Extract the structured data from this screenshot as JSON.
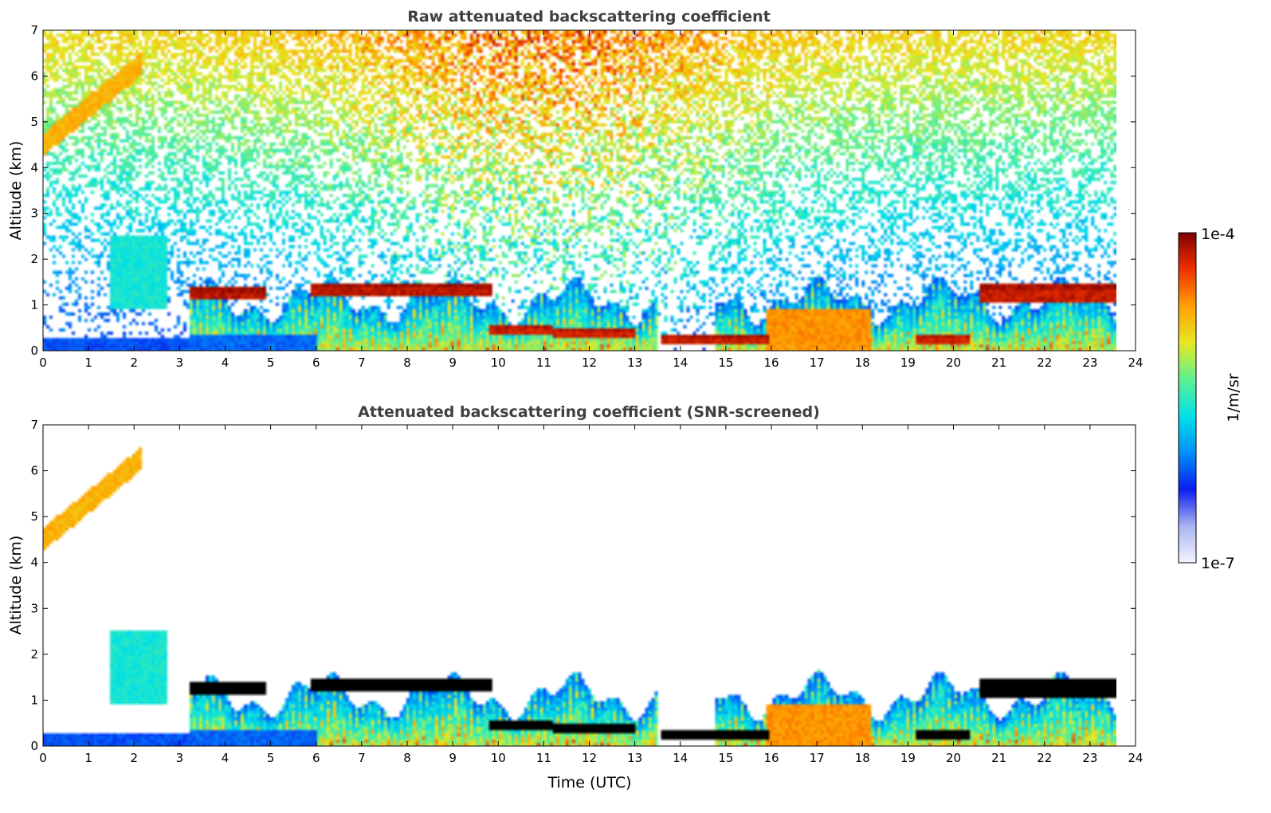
{
  "chart_data": [
    {
      "type": "heatmap",
      "title": "Raw attenuated backscattering coefficient",
      "xlabel": "",
      "ylabel": "Altitude (km)",
      "xlim": [
        0,
        24
      ],
      "ylim": [
        0,
        7
      ],
      "x_ticks": [
        "0",
        "1",
        "2",
        "3",
        "4",
        "5",
        "6",
        "7",
        "8",
        "9",
        "10",
        "11",
        "12",
        "13",
        "14",
        "15",
        "16",
        "17",
        "18",
        "19",
        "20",
        "21",
        "22",
        "23",
        "24"
      ],
      "y_ticks": [
        "0",
        "1",
        "2",
        "3",
        "4",
        "5",
        "6",
        "7"
      ],
      "data_end_x": 23.6,
      "screened": false,
      "features": [
        {
          "kind": "near-surface background",
          "x": [
            0,
            3.2
          ],
          "alt": [
            0,
            0.3
          ],
          "level": 0.3
        },
        {
          "kind": "near-surface background",
          "x": [
            3.2,
            6.0
          ],
          "alt": [
            0,
            0.35
          ],
          "level": 0.32
        },
        {
          "kind": "ascending cloud",
          "x": [
            0.0,
            2.2
          ],
          "alt_start": 4.5,
          "alt_end": 6.3,
          "level": 0.78
        },
        {
          "kind": "aerosol plume",
          "x": [
            1.5,
            2.7
          ],
          "alt": [
            0.9,
            2.5
          ],
          "level": 0.5
        },
        {
          "kind": "cloud layer",
          "x": [
            3.2,
            4.9
          ],
          "alt": [
            1.1,
            1.4
          ],
          "level": 0.97
        },
        {
          "kind": "cloud layer",
          "x": [
            5.9,
            9.9
          ],
          "alt": [
            1.2,
            1.5
          ],
          "level": 0.97
        },
        {
          "kind": "cloud layer",
          "x": [
            9.8,
            11.2
          ],
          "alt": [
            0.35,
            0.55
          ],
          "level": 0.95
        },
        {
          "kind": "cloud layer",
          "x": [
            11.2,
            13.0
          ],
          "alt": [
            0.3,
            0.5
          ],
          "level": 0.95
        },
        {
          "kind": "cloud layer",
          "x": [
            13.6,
            16.0
          ],
          "alt": [
            0.15,
            0.35
          ],
          "level": 0.96
        },
        {
          "kind": "boundary layer",
          "x": [
            15.9,
            18.2
          ],
          "alt": [
            0,
            0.9
          ],
          "level": 0.82
        },
        {
          "kind": "cloud layer",
          "x": [
            19.2,
            20.4
          ],
          "alt": [
            0.15,
            0.35
          ],
          "level": 0.95
        },
        {
          "kind": "cloud layer",
          "x": [
            20.6,
            23.6
          ],
          "alt": [
            1.05,
            1.5
          ],
          "level": 0.96
        }
      ]
    },
    {
      "type": "heatmap",
      "title": "Attenuated backscattering coefficient (SNR-screened)",
      "xlabel": "Time (UTC)",
      "ylabel": "Altitude (km)",
      "xlim": [
        0,
        24
      ],
      "ylim": [
        0,
        7
      ],
      "x_ticks": [
        "0",
        "1",
        "2",
        "3",
        "4",
        "5",
        "6",
        "7",
        "8",
        "9",
        "10",
        "11",
        "12",
        "13",
        "14",
        "15",
        "16",
        "17",
        "18",
        "19",
        "20",
        "21",
        "22",
        "23",
        "24"
      ],
      "y_ticks": [
        "0",
        "1",
        "2",
        "3",
        "4",
        "5",
        "6",
        "7"
      ],
      "data_end_x": 23.6,
      "screened": true
    }
  ],
  "colorbar": {
    "label": "1/m/sr",
    "max_label": "1e-4",
    "min_label": "1e-7",
    "stops": [
      "#f4f4ff",
      "#a8b4f0",
      "#0a1ef0",
      "#0090f8",
      "#00e0e8",
      "#60f090",
      "#e8e820",
      "#ffa000",
      "#f03000",
      "#800000"
    ]
  }
}
